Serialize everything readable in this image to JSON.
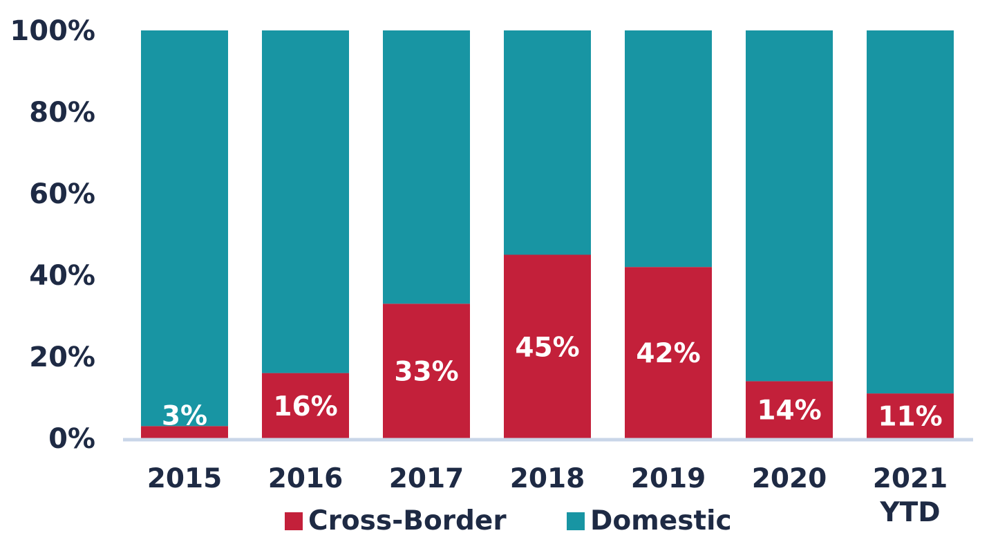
{
  "chart_data": {
    "type": "bar",
    "stacked": true,
    "categories": [
      "2015",
      "2016",
      "2017",
      "2018",
      "2019",
      "2020",
      "2021 YTD"
    ],
    "series": [
      {
        "name": "Cross-Border",
        "color": "#c3203a",
        "values": [
          3,
          16,
          33,
          45,
          42,
          14,
          11
        ],
        "labels": [
          "3%",
          "16%",
          "33%",
          "45%",
          "42%",
          "14%",
          "11%"
        ]
      },
      {
        "name": "Domestic",
        "color": "#1895a3",
        "values": [
          97,
          84,
          67,
          55,
          58,
          86,
          89
        ]
      }
    ],
    "yticks": [
      "0%",
      "20%",
      "40%",
      "60%",
      "80%",
      "100%"
    ],
    "ylim": [
      0,
      100
    ],
    "grid": false,
    "legend": "bottom",
    "axis_color": "#c9d6e8"
  }
}
